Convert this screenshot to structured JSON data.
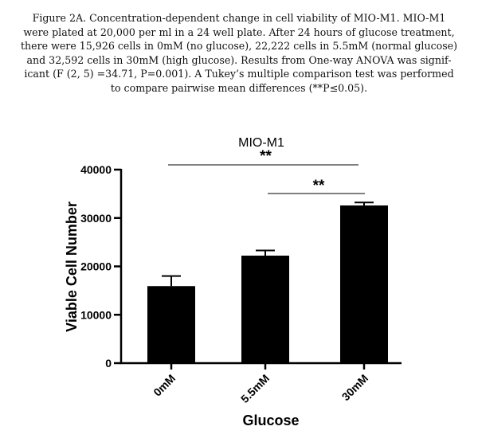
{
  "caption": {
    "lines": [
      "Figure 2A. Concentration-dependent change in cell viability of MIO-M1. MIO-M1",
      "were plated at 20,000 per ml in a 24 well plate. After 24 hours of glucose treatment,",
      "there were 15,926 cells in 0mM (no glucose), 22,222 cells in 5.5mM (normal glucose)",
      "and 32,592 cells in 30mM (high glucose). Results from One-way ANOVA was signif-",
      "icant (F (2, 5) =34.71, P=0.001). A Tukey’s multiple comparison test was performed",
      "to compare pairwise mean differences (**P≤0.05)."
    ]
  },
  "chart_data": {
    "type": "bar",
    "title": "MIO-M1",
    "xlabel": "Glucose",
    "ylabel": "Viable Cell Number",
    "categories": [
      "0mM",
      "5.5mM",
      "30mM"
    ],
    "values": [
      15926,
      22222,
      32592
    ],
    "error_upper": [
      18000,
      23300,
      33200
    ],
    "ylim": [
      0,
      40000
    ],
    "yticks": [
      0,
      10000,
      20000,
      30000,
      40000
    ],
    "ytick_labels": [
      "0",
      "10000",
      "20000",
      "30000",
      "40000"
    ],
    "grid": false,
    "bar_color": "#000000",
    "significance": [
      {
        "from": "0mM",
        "to": "30mM",
        "label": "**"
      },
      {
        "from": "5.5mM",
        "to": "30mM",
        "label": "**"
      }
    ]
  }
}
